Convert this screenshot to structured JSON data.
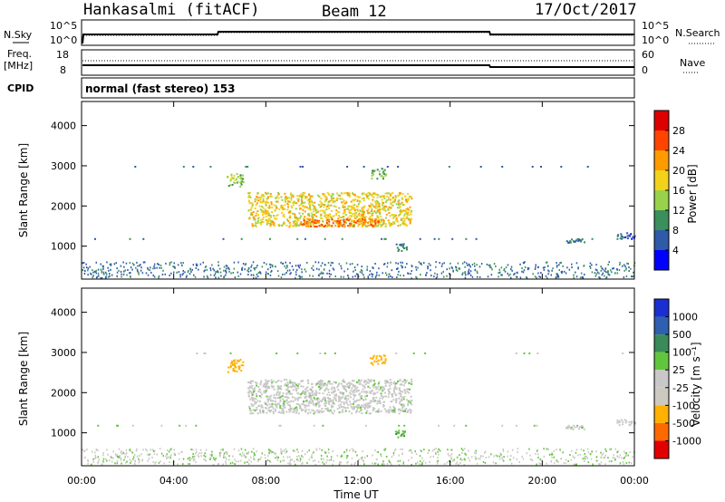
{
  "header": {
    "station": "Hankasalmi (fitACF)",
    "beam": "Beam 12",
    "date": "17/Oct/2017"
  },
  "noise_panel": {
    "left_label": "N.Sky",
    "right_label": "N.Search",
    "left_top": "10^5",
    "left_bottom": "10^0",
    "right_top": "10^5",
    "right_bottom": "10^0"
  },
  "freq_panel": {
    "left_label_1": "Freq.",
    "left_label_2": "[MHz]",
    "right_label": "Nave",
    "left_top": "18",
    "left_bottom": "8",
    "right_top": "60",
    "right_bottom": "0"
  },
  "cpid": {
    "label": "CPID",
    "value": "normal (fast stereo) 153"
  },
  "power_panel": {
    "ylabel": "Slant Range [km]",
    "colorbar_label": "Power [dB]",
    "colorbar_ticks": [
      "4",
      "8",
      "12",
      "16",
      "20",
      "24",
      "28"
    ]
  },
  "velocity_panel": {
    "ylabel": "Slant Range [km]",
    "colorbar_label": "Velocity [m s⁻¹]",
    "colorbar_ticks": [
      "-1000",
      "-500",
      "-100",
      "-25",
      "25",
      "100",
      "500",
      "1000"
    ]
  },
  "x_axis": {
    "label": "Time UT",
    "ticks": [
      "00:00",
      "04:00",
      "08:00",
      "12:00",
      "16:00",
      "20:00",
      "00:00"
    ]
  },
  "y_ticks": [
    "1000",
    "2000",
    "3000",
    "4000"
  ],
  "colors": {
    "power_scale": [
      "#0000ff",
      "#2e5aa8",
      "#3a8f5b",
      "#98d24a",
      "#f2d21a",
      "#ff9a00",
      "#ff4400",
      "#dd0000"
    ],
    "velocity_scale": [
      "#e10000",
      "#ff6a00",
      "#ffb000",
      "#ccc9c0",
      "#c8c8c8",
      "#62c63c",
      "#3a8a5a",
      "#2f5fb0",
      "#1a2fd0"
    ]
  },
  "chart_data": [
    {
      "type": "heatmap",
      "title": "Power",
      "xlabel": "Time UT",
      "ylabel": "Slant Range [km]",
      "x_range_hours": [
        0,
        24
      ],
      "ylim": [
        180,
        4600
      ],
      "colorbar": {
        "label": "Power [dB]",
        "range": [
          0,
          30
        ],
        "ticks": [
          4,
          8,
          12,
          16,
          20,
          24,
          28
        ]
      },
      "regions": [
        {
          "t": [
            6.3,
            7.0
          ],
          "range": [
            2500,
            2850
          ],
          "power_db": 14
        },
        {
          "t": [
            7.2,
            14.3
          ],
          "range": [
            1500,
            2350
          ],
          "power_db": 18
        },
        {
          "t": [
            9.5,
            13.0
          ],
          "range": [
            1500,
            1700
          ],
          "power_db": 24
        },
        {
          "t": [
            12.5,
            13.2
          ],
          "range": [
            2700,
            2950
          ],
          "power_db": 12
        },
        {
          "t": [
            13.6,
            14.1
          ],
          "range": [
            900,
            1100
          ],
          "power_db": 8
        },
        {
          "t": [
            21.0,
            21.8
          ],
          "range": [
            1100,
            1200
          ],
          "power_db": 8
        },
        {
          "t": [
            23.2,
            24.0
          ],
          "range": [
            1200,
            1350
          ],
          "power_db": 6
        }
      ]
    },
    {
      "type": "heatmap",
      "title": "Velocity",
      "xlabel": "Time UT",
      "ylabel": "Slant Range [km]",
      "x_range_hours": [
        0,
        24
      ],
      "ylim": [
        180,
        4600
      ],
      "colorbar": {
        "label": "Velocity [m s⁻¹]",
        "range": [
          -1000,
          1000
        ],
        "ticks": [
          -1000,
          -500,
          -100,
          -25,
          25,
          100,
          500,
          1000
        ]
      },
      "regions": [
        {
          "t": [
            6.3,
            7.0
          ],
          "range": [
            2500,
            2850
          ],
          "velocity": -300
        },
        {
          "t": [
            7.2,
            14.3
          ],
          "range": [
            1500,
            2350
          ],
          "velocity": 0
        },
        {
          "t": [
            12.5,
            13.2
          ],
          "range": [
            2700,
            2950
          ],
          "velocity": -200
        },
        {
          "t": [
            13.6,
            14.1
          ],
          "range": [
            900,
            1100
          ],
          "velocity": 80
        },
        {
          "t": [
            21.0,
            21.8
          ],
          "range": [
            1100,
            1200
          ],
          "velocity": 0
        },
        {
          "t": [
            23.2,
            24.0
          ],
          "range": [
            1200,
            1350
          ],
          "velocity": 0
        }
      ]
    }
  ]
}
